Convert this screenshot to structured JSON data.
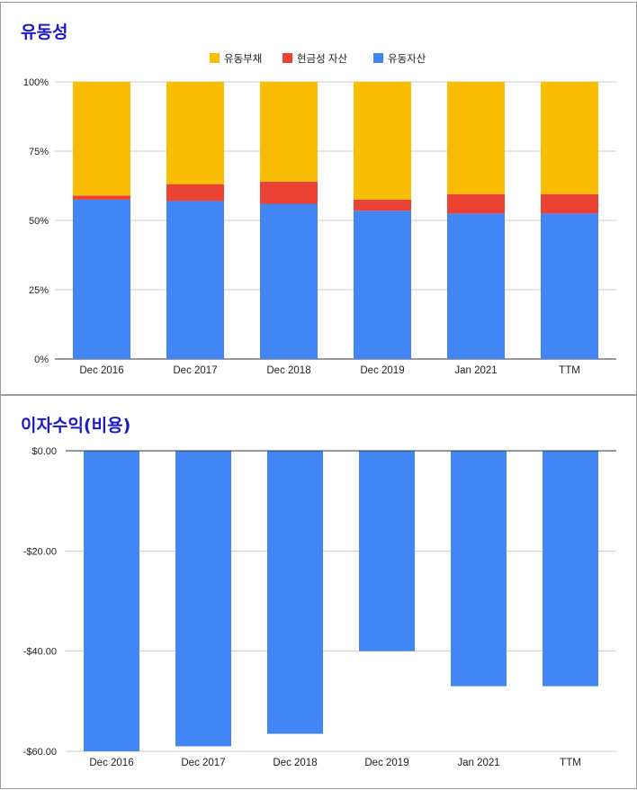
{
  "chart_data": [
    {
      "type": "bar",
      "stacked": true,
      "normalized": true,
      "title": "유동성",
      "categories": [
        "Dec 2016",
        "Dec 2017",
        "Dec 2018",
        "Dec 2019",
        "Jan 2021",
        "TTM"
      ],
      "series": [
        {
          "name": "유동자산",
          "color": "#4285f4",
          "values": [
            57.5,
            57,
            56,
            53.5,
            52.5,
            52.5
          ]
        },
        {
          "name": "현금성 자산",
          "color": "#ea4335",
          "values": [
            1.5,
            6,
            8,
            4,
            7,
            7
          ]
        },
        {
          "name": "유동부채",
          "color": "#fbbc04",
          "values": [
            41,
            37,
            36,
            42.5,
            40.5,
            40.5
          ]
        }
      ],
      "legend_order": [
        "유동부채",
        "현금성 자산",
        "유동자산"
      ],
      "legend_position": "top",
      "y_ticks": [
        0,
        25,
        50,
        75,
        100
      ],
      "y_tick_labels": [
        "0%",
        "25%",
        "50%",
        "75%",
        "100%"
      ],
      "ylim": [
        0,
        100
      ],
      "grid": true
    },
    {
      "type": "bar",
      "title": "이자수익(비용)",
      "categories": [
        "Dec 2016",
        "Dec 2017",
        "Dec 2018",
        "Dec 2019",
        "Jan 2021",
        "TTM"
      ],
      "values": [
        -60,
        -59,
        -56.5,
        -40,
        -47,
        -47
      ],
      "color": "#4285f4",
      "y_ticks": [
        0,
        -20,
        -40,
        -60
      ],
      "y_tick_labels": [
        "$0.00",
        "-$20.00",
        "-$40.00",
        "-$60.00"
      ],
      "ylim": [
        -60,
        0
      ],
      "grid": true
    }
  ]
}
